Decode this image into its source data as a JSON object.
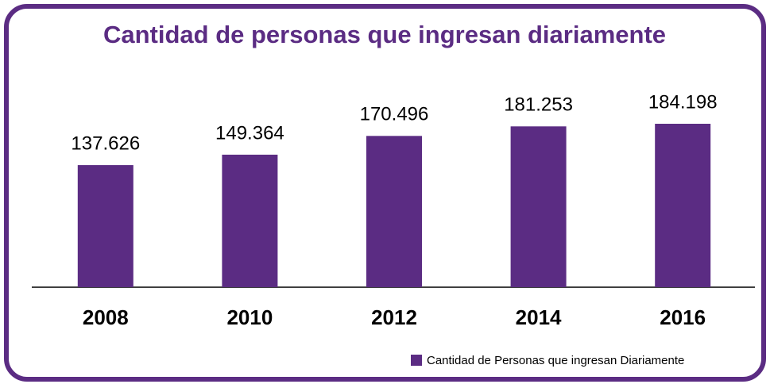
{
  "chart_data": {
    "type": "bar",
    "title": "Cantidad de personas que ingresan diariamente",
    "categories": [
      "2008",
      "2010",
      "2012",
      "2014",
      "2016"
    ],
    "series": [
      {
        "name": "Cantidad de Personas que ingresan Diariamente",
        "color": "#5b2c83",
        "values": [
          137626,
          149364,
          170496,
          181253,
          184198
        ],
        "value_labels": [
          "137.626",
          "149.364",
          "170.496",
          "181.253",
          "184.198"
        ]
      }
    ]
  }
}
